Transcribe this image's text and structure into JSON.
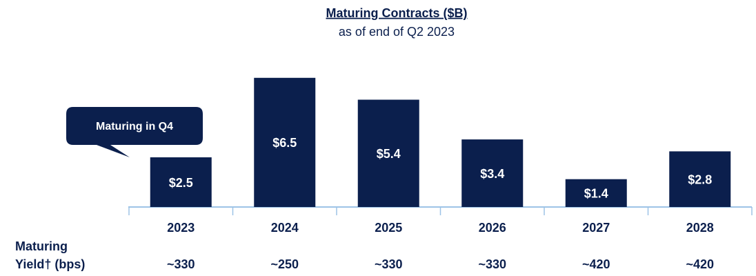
{
  "chart_data": {
    "type": "bar",
    "title": "Maturing Contracts ($B)",
    "subtitle": "as of end of Q2 2023",
    "categories": [
      "2023",
      "2024",
      "2025",
      "2026",
      "2027",
      "2028"
    ],
    "values": [
      2.5,
      6.5,
      5.4,
      3.4,
      1.4,
      2.8
    ],
    "value_labels": [
      "$2.5",
      "$6.5",
      "$5.4",
      "$3.4",
      "$1.4",
      "$2.8"
    ],
    "color": "#0b1f4d",
    "annotation": "Maturing in Q4",
    "row_label": [
      "Maturing",
      "Yield† (bps)"
    ],
    "yields": [
      "~330",
      "~250",
      "~330",
      "~330",
      "~420",
      "~420"
    ]
  }
}
